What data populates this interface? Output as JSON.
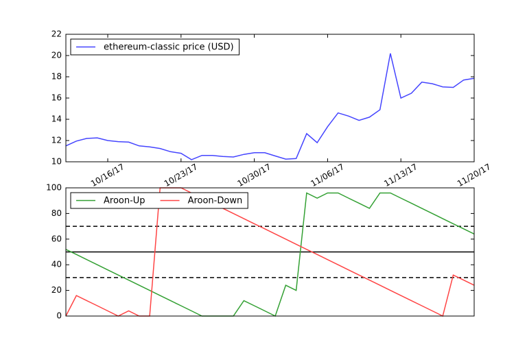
{
  "chart_data": [
    {
      "type": "line",
      "x": [
        "2017-10-12",
        "2017-10-13",
        "2017-10-14",
        "2017-10-15",
        "2017-10-16",
        "2017-10-17",
        "2017-10-18",
        "2017-10-19",
        "2017-10-20",
        "2017-10-21",
        "2017-10-22",
        "2017-10-23",
        "2017-10-24",
        "2017-10-25",
        "2017-10-26",
        "2017-10-27",
        "2017-10-28",
        "2017-10-29",
        "2017-10-30",
        "2017-10-31",
        "2017-11-01",
        "2017-11-02",
        "2017-11-03",
        "2017-11-04",
        "2017-11-05",
        "2017-11-06",
        "2017-11-07",
        "2017-11-08",
        "2017-11-09",
        "2017-11-10",
        "2017-11-11",
        "2017-11-12",
        "2017-11-13",
        "2017-11-14",
        "2017-11-15",
        "2017-11-16",
        "2017-11-17",
        "2017-11-18",
        "2017-11-19",
        "2017-11-20"
      ],
      "series": [
        {
          "name": "ethereum-classic price (USD)",
          "color": "#4444ff",
          "values": [
            11.5,
            11.95,
            12.2,
            12.25,
            12.0,
            11.9,
            11.85,
            11.5,
            11.4,
            11.25,
            10.95,
            10.8,
            10.2,
            10.6,
            10.6,
            10.5,
            10.45,
            10.7,
            10.85,
            10.85,
            10.55,
            10.25,
            10.3,
            12.65,
            11.8,
            13.3,
            14.6,
            14.3,
            13.9,
            14.2,
            14.9,
            20.2,
            16.0,
            16.45,
            17.5,
            17.35,
            17.05,
            17.0,
            17.7,
            17.85
          ]
        }
      ],
      "xlim": [
        "2017-10-12",
        "2017-11-20"
      ],
      "xticks": [
        {
          "value": "2017-10-16",
          "label": "10/16/17"
        },
        {
          "value": "2017-10-23",
          "label": "10/23/17"
        },
        {
          "value": "2017-10-30",
          "label": "10/30/17"
        },
        {
          "value": "2017-11-06",
          "label": "11/06/17"
        },
        {
          "value": "2017-11-13",
          "label": "11/13/17"
        },
        {
          "value": "2017-11-20",
          "label": "11/20/17"
        }
      ],
      "ylim": [
        10,
        22
      ],
      "yticks": [
        10,
        12,
        14,
        16,
        18,
        20,
        22
      ],
      "legend": "upper left"
    },
    {
      "type": "line",
      "x": [
        "2017-10-12",
        "2017-10-13",
        "2017-10-14",
        "2017-10-15",
        "2017-10-16",
        "2017-10-17",
        "2017-10-18",
        "2017-10-19",
        "2017-10-20",
        "2017-10-21",
        "2017-10-22",
        "2017-10-23",
        "2017-10-24",
        "2017-10-25",
        "2017-10-26",
        "2017-10-27",
        "2017-10-28",
        "2017-10-29",
        "2017-10-30",
        "2017-10-31",
        "2017-11-01",
        "2017-11-02",
        "2017-11-03",
        "2017-11-04",
        "2017-11-05",
        "2017-11-06",
        "2017-11-07",
        "2017-11-08",
        "2017-11-09",
        "2017-11-10",
        "2017-11-11",
        "2017-11-12",
        "2017-11-13",
        "2017-11-14",
        "2017-11-15",
        "2017-11-16",
        "2017-11-17",
        "2017-11-18",
        "2017-11-19",
        "2017-11-20"
      ],
      "series": [
        {
          "name": "Aroon-Up",
          "color": "#33a033",
          "values": [
            52,
            48,
            44,
            40,
            36,
            32,
            28,
            24,
            20,
            16,
            12,
            8,
            4,
            0,
            0,
            0,
            0,
            12,
            8,
            4,
            0,
            24,
            20,
            96,
            92,
            96,
            96,
            92,
            88,
            84,
            96,
            96,
            92,
            88,
            84,
            80,
            76,
            72,
            68,
            64
          ]
        },
        {
          "name": "Aroon-Down",
          "color": "#ff4444",
          "values": [
            0,
            16,
            12,
            8,
            4,
            0,
            4,
            0,
            0,
            100,
            100,
            100,
            96,
            92,
            88,
            84,
            80,
            76,
            72,
            68,
            64,
            60,
            56,
            52,
            48,
            44,
            40,
            36,
            32,
            28,
            24,
            20,
            16,
            12,
            8,
            4,
            0,
            32,
            28,
            24
          ]
        }
      ],
      "reference_lines": [
        {
          "y": 70,
          "style": "dashed"
        },
        {
          "y": 50,
          "style": "solid"
        },
        {
          "y": 30,
          "style": "dashed"
        }
      ],
      "xlim": [
        "2017-10-12",
        "2017-11-20"
      ],
      "ylim": [
        0,
        100
      ],
      "yticks": [
        0,
        20,
        40,
        60,
        80,
        100
      ],
      "legend": "upper left"
    }
  ]
}
